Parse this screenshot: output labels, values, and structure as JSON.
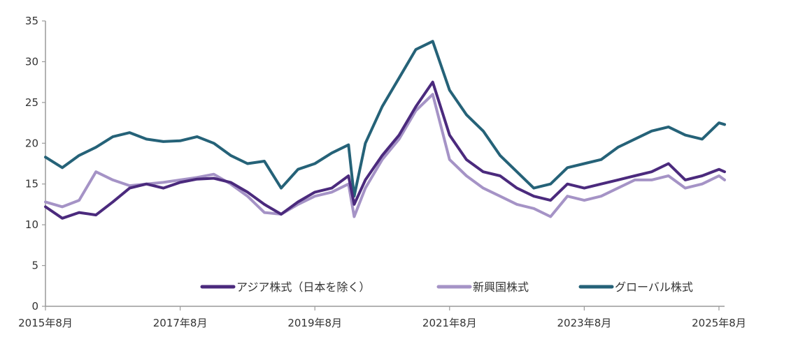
{
  "chart_data": {
    "type": "line",
    "title": "",
    "xlabel": "",
    "ylabel": "",
    "ylim": [
      0,
      35
    ],
    "yticks": [
      0,
      5,
      10,
      15,
      20,
      25,
      30,
      35
    ],
    "x_axis": {
      "start": "2015年8月",
      "end": "2025年9月",
      "tick_labels": [
        "2015年8月",
        "2017年8月",
        "2019年8月",
        "2021年8月",
        "2023年8月",
        "2025年8月"
      ]
    },
    "grid": false,
    "legend_position": "bottom-inside",
    "x": [
      "2015年8月",
      "2015年11月",
      "2016年2月",
      "2016年5月",
      "2016年8月",
      "2016年11月",
      "2017年2月",
      "2017年5月",
      "2017年8月",
      "2017年11月",
      "2018年2月",
      "2018年5月",
      "2018年8月",
      "2018年11月",
      "2019年2月",
      "2019年5月",
      "2019年8月",
      "2019年11月",
      "2020年2月",
      "2020年3月",
      "2020年5月",
      "2020年8月",
      "2020年11月",
      "2021年2月",
      "2021年5月",
      "2021年8月",
      "2021年11月",
      "2022年2月",
      "2022年5月",
      "2022年8月",
      "2022年11月",
      "2023年2月",
      "2023年5月",
      "2023年8月",
      "2023年11月",
      "2024年2月",
      "2024年5月",
      "2024年8月",
      "2024年11月",
      "2025年2月",
      "2025年5月",
      "2025年8月",
      "2025年9月"
    ],
    "series": [
      {
        "name": "アジア株式（日本を除く）",
        "color": "#4b2a7d",
        "values": [
          12.2,
          10.8,
          11.5,
          11.2,
          12.8,
          14.5,
          15.0,
          14.5,
          15.2,
          15.6,
          15.7,
          15.2,
          14.0,
          12.5,
          11.3,
          12.8,
          14.0,
          14.5,
          16.0,
          12.5,
          15.5,
          18.5,
          21.0,
          24.5,
          27.5,
          21.0,
          18.0,
          16.5,
          16.0,
          14.5,
          13.5,
          13.0,
          15.0,
          14.5,
          15.0,
          15.5,
          16.0,
          16.5,
          17.5,
          15.5,
          16.0,
          16.8,
          16.5
        ]
      },
      {
        "name": "新興国株式",
        "color": "#a593c6",
        "values": [
          12.8,
          12.2,
          13.0,
          16.5,
          15.5,
          14.8,
          15.0,
          15.2,
          15.5,
          15.8,
          16.2,
          15.0,
          13.5,
          11.5,
          11.3,
          12.5,
          13.5,
          14.0,
          15.0,
          11.0,
          14.5,
          18.0,
          20.5,
          24.0,
          26.0,
          18.0,
          16.0,
          14.5,
          13.5,
          12.5,
          12.0,
          11.0,
          13.5,
          13.0,
          13.5,
          14.5,
          15.5,
          15.5,
          16.0,
          14.5,
          15.0,
          16.0,
          15.5
        ]
      },
      {
        "name": "グローバル株式",
        "color": "#256278",
        "values": [
          18.3,
          17.0,
          18.5,
          19.5,
          20.8,
          21.3,
          20.5,
          20.2,
          20.3,
          20.8,
          20.0,
          18.5,
          17.5,
          17.8,
          14.5,
          16.8,
          17.5,
          18.8,
          19.8,
          13.5,
          20.0,
          24.5,
          28.0,
          31.5,
          32.5,
          26.5,
          23.5,
          21.5,
          18.5,
          16.5,
          14.5,
          15.0,
          17.0,
          17.5,
          18.0,
          19.5,
          20.5,
          21.5,
          22.0,
          21.0,
          20.5,
          22.5,
          22.3
        ]
      }
    ]
  }
}
